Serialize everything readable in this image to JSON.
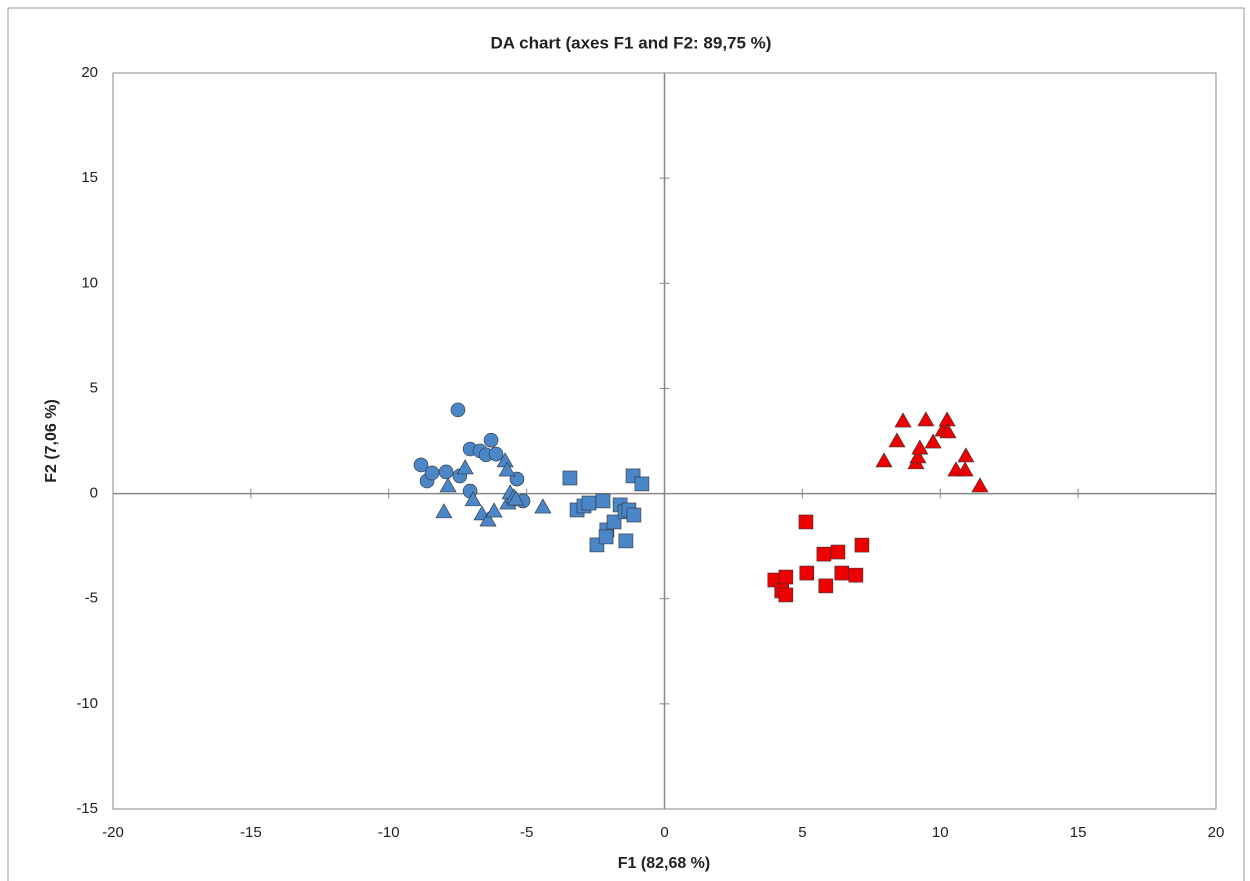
{
  "chart_data": {
    "type": "scatter",
    "title": "DA chart (axes F1 and F2: 89,75 %)",
    "x_label": "F1 (82,68 %)",
    "y_label": "F2 (7,06 %)",
    "xlim": [
      -20,
      20
    ],
    "xticks": [
      -20,
      -15,
      -10,
      -5,
      0,
      5,
      10,
      15,
      20
    ],
    "ylim": [
      -15,
      20
    ],
    "yticks": [
      -15,
      -10,
      -5,
      0,
      5,
      10,
      15,
      20
    ],
    "series": [
      {
        "color": "#4a86c8",
        "marker": "circle",
        "x": [
          -7.49,
          -8.83,
          -8.61,
          -8.43,
          -7.92,
          -7.42,
          -7.05,
          -6.69,
          -6.29,
          -6.47,
          -6.11,
          -7.05,
          -5.35,
          -5.5,
          -5.13
        ],
        "values": [
          3.98,
          1.36,
          0.6,
          0.98,
          1.03,
          0.84,
          2.12,
          2.03,
          2.54,
          1.84,
          1.88,
          0.12,
          0.69,
          -0.3,
          -0.35
        ]
      },
      {
        "color": "#4a86c8",
        "marker": "triangle",
        "x": [
          -8.0,
          -7.85,
          -7.23,
          -6.94,
          -6.62,
          -6.4,
          -6.18,
          -5.78,
          -5.71,
          -5.68,
          -5.6,
          -5.46,
          -4.41,
          -5.39
        ],
        "values": [
          -0.87,
          0.36,
          1.22,
          -0.3,
          -0.97,
          -1.26,
          -0.83,
          1.55,
          1.12,
          -0.45,
          0.03,
          -0.16,
          -0.64,
          -0.26
        ]
      },
      {
        "color": "#4a86c8",
        "marker": "square",
        "x": [
          -3.43,
          -3.17,
          -2.92,
          -2.74,
          -2.45,
          -2.23,
          -2.09,
          -2.12,
          -1.83,
          -1.61,
          -1.43,
          -1.4,
          -1.29,
          -1.11,
          -1.14,
          -0.82
        ],
        "values": [
          0.74,
          -0.78,
          -0.59,
          -0.45,
          -2.44,
          -0.35,
          -1.73,
          -2.06,
          -1.35,
          -0.54,
          -0.87,
          -2.25,
          -0.78,
          -1.02,
          0.84,
          0.46
        ]
      },
      {
        "color": "#ee0000",
        "marker": "triangle",
        "x": [
          8.65,
          8.43,
          9.48,
          7.96,
          9.12,
          9.19,
          9.26,
          9.74,
          10.1,
          10.25,
          10.28,
          10.57,
          10.93,
          10.9,
          11.44
        ],
        "values": [
          3.45,
          2.5,
          3.5,
          1.55,
          1.46,
          1.74,
          2.16,
          2.45,
          3.02,
          3.5,
          2.93,
          1.12,
          1.79,
          1.12,
          0.36
        ]
      },
      {
        "color": "#ee0000",
        "marker": "square",
        "x": [
          5.13,
          4.0,
          4.4,
          4.25,
          4.4,
          5.16,
          5.78,
          6.29,
          5.85,
          6.43,
          6.94,
          7.16
        ],
        "values": [
          -1.35,
          -4.11,
          -3.97,
          -4.63,
          -4.82,
          -3.78,
          -2.88,
          -2.78,
          -4.39,
          -3.78,
          -3.88,
          -2.45
        ]
      }
    ]
  }
}
